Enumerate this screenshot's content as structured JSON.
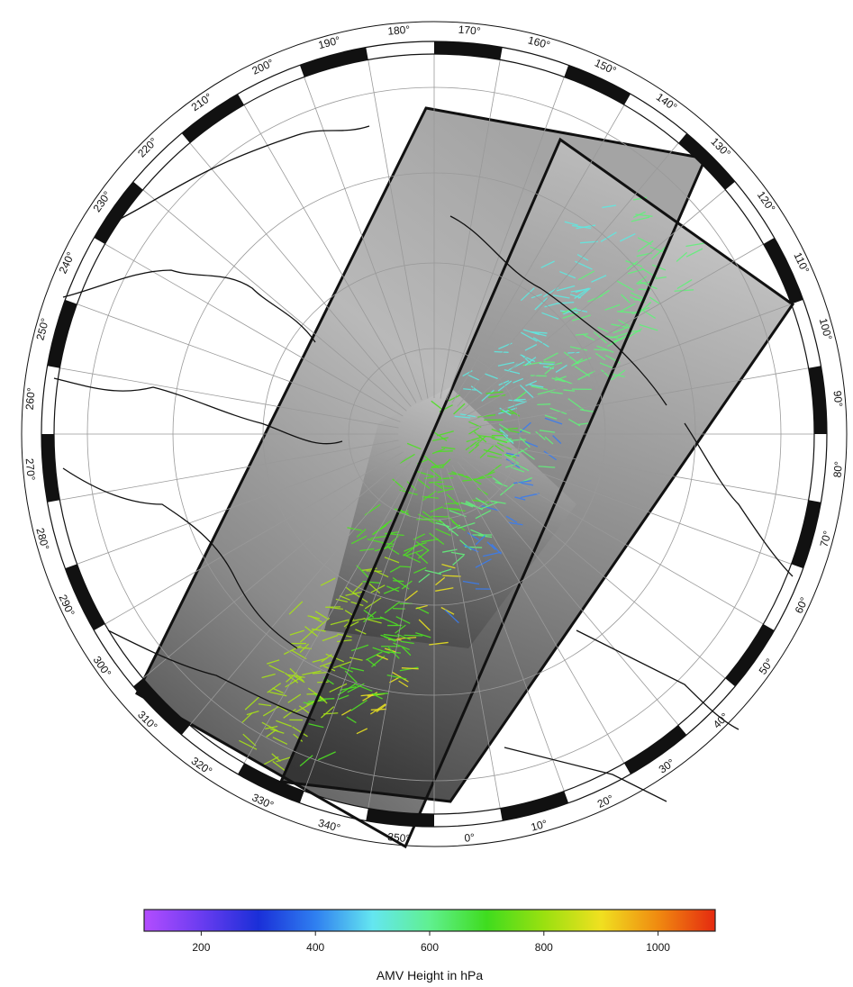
{
  "map": {
    "projection": "north polar stereographic",
    "longitude_labels": [
      "0°",
      "10°",
      "20°",
      "30°",
      "40°",
      "50°",
      "60°",
      "70°",
      "80°",
      "90°",
      "100°",
      "110°",
      "120°",
      "130°",
      "140°",
      "150°",
      "160°",
      "170°",
      "180°",
      "190°",
      "200°",
      "210°",
      "220°",
      "230°",
      "240°",
      "250°",
      "260°",
      "270°",
      "280°",
      "290°",
      "300°",
      "310°",
      "320°",
      "330°",
      "340°",
      "350°"
    ],
    "overlay": "atmospheric motion vectors over satellite imagery swaths"
  },
  "colorbar": {
    "title": "AMV Height in hPa",
    "range": [
      100,
      1100
    ],
    "tick_labels": [
      "200",
      "400",
      "600",
      "800",
      "1000"
    ],
    "tick_values": [
      200,
      400,
      600,
      800,
      1000
    ],
    "colors": [
      "#b34dff",
      "#6a3cf0",
      "#1a2fd8",
      "#2f7ff0",
      "#64e6f0",
      "#60f090",
      "#3fdc1e",
      "#9ae010",
      "#f0e020",
      "#f08a10",
      "#e52a10"
    ]
  }
}
